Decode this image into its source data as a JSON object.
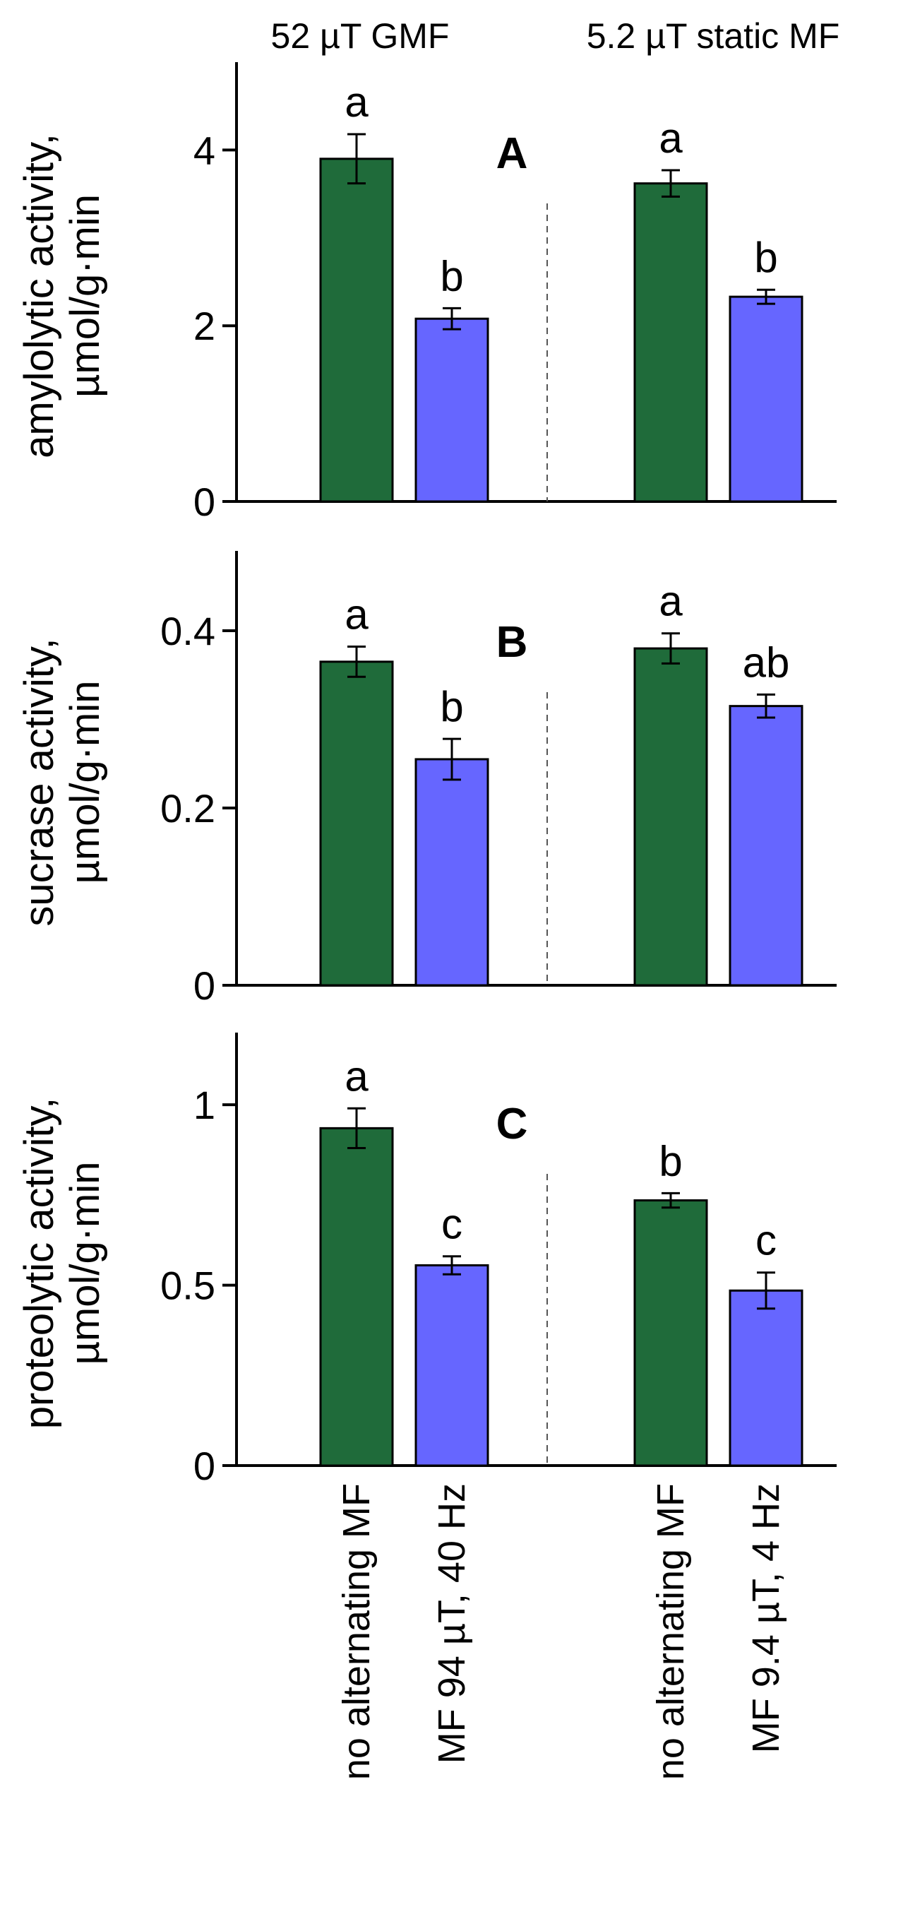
{
  "figure": {
    "group_headers": [
      "52 µT GMF",
      "5.2 µT static MF"
    ],
    "category_labels": [
      "no alternating MF",
      "MF 94 µT, 40 Hz",
      "no alternating MF",
      "MF 9.4 µT, 4 Hz"
    ]
  },
  "chart_data": [
    {
      "type": "bar",
      "panel": "A",
      "ylabel": [
        "amylolytic activity,",
        "µmol/g·min"
      ],
      "ylim": [
        0,
        5
      ],
      "yticks": [
        0,
        2,
        4
      ],
      "ytick_labels": [
        "0",
        "2",
        "4"
      ],
      "categories": [
        "no alternating MF",
        "MF 94 µT, 40 Hz",
        "no alternating MF",
        "MF 9.4 µT, 4 Hz"
      ],
      "groups": [
        "52 µT GMF",
        "5.2 µT static MF"
      ],
      "values": [
        3.9,
        2.08,
        3.62,
        2.33
      ],
      "errors": [
        0.28,
        0.12,
        0.15,
        0.08
      ],
      "significance": [
        "a",
        "b",
        "a",
        "b"
      ],
      "colors": [
        "#1f6b3a",
        "#6666ff",
        "#1f6b3a",
        "#6666ff"
      ]
    },
    {
      "type": "bar",
      "panel": "B",
      "ylabel": [
        "sucrase activity,",
        "µmol/g·min"
      ],
      "ylim": [
        0,
        0.49
      ],
      "yticks": [
        0,
        0.2,
        0.4
      ],
      "ytick_labels": [
        "0",
        "0.2",
        "0.4"
      ],
      "categories": [
        "no alternating MF",
        "MF 94 µT, 40 Hz",
        "no alternating MF",
        "MF 9.4 µT, 4 Hz"
      ],
      "groups": [
        "52 µT GMF",
        "5.2 µT static MF"
      ],
      "values": [
        0.365,
        0.255,
        0.38,
        0.315
      ],
      "errors": [
        0.017,
        0.023,
        0.017,
        0.013
      ],
      "significance": [
        "a",
        "b",
        "a",
        "ab"
      ],
      "colors": [
        "#1f6b3a",
        "#6666ff",
        "#1f6b3a",
        "#6666ff"
      ]
    },
    {
      "type": "bar",
      "panel": "C",
      "ylabel": [
        "proteolytic activity,",
        "µmol/g·min"
      ],
      "ylim": [
        0,
        1.2
      ],
      "yticks": [
        0,
        0.5,
        1
      ],
      "ytick_labels": [
        "0",
        "0.5",
        "1"
      ],
      "categories": [
        "no alternating MF",
        "MF 94 µT, 40 Hz",
        "no alternating MF",
        "MF 9.4 µT, 4 Hz"
      ],
      "groups": [
        "52 µT GMF",
        "5.2 µT static MF"
      ],
      "values": [
        0.935,
        0.555,
        0.735,
        0.485
      ],
      "errors": [
        0.055,
        0.025,
        0.02,
        0.05
      ],
      "significance": [
        "a",
        "c",
        "b",
        "c"
      ],
      "colors": [
        "#1f6b3a",
        "#6666ff",
        "#1f6b3a",
        "#6666ff"
      ]
    }
  ]
}
